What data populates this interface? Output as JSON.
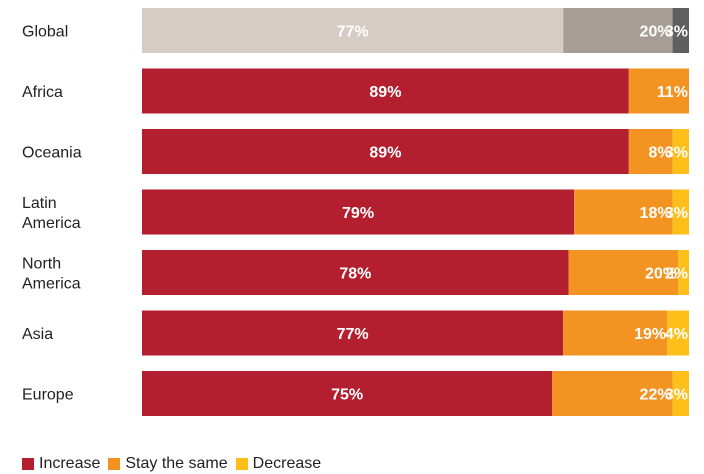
{
  "chart_data": {
    "type": "bar",
    "orientation": "horizontal",
    "stacked": true,
    "unit": "%",
    "categories": [
      "Global",
      "Africa",
      "Oceania",
      "Latin\nAmerica",
      "North\nAmerica",
      "Asia",
      "Europe"
    ],
    "series": [
      {
        "name": "Increase",
        "values": [
          77,
          89,
          89,
          79,
          78,
          77,
          75
        ]
      },
      {
        "name": "Stay the same",
        "values": [
          20,
          11,
          8,
          18,
          20,
          19,
          22
        ]
      },
      {
        "name": "Decrease",
        "values": [
          3,
          0,
          3,
          3,
          2,
          4,
          3
        ]
      }
    ],
    "xlim": [
      0,
      100
    ],
    "grid": false,
    "legend_position": "bottom-left",
    "colors": {
      "increase": "#b41f2f",
      "stay_the_same": "#f39322",
      "decrease": "#ffbf1a",
      "global_increase": "#d6ccc5",
      "global_stay_the_same": "#a89d95",
      "global_decrease": "#5f5f5f"
    }
  }
}
